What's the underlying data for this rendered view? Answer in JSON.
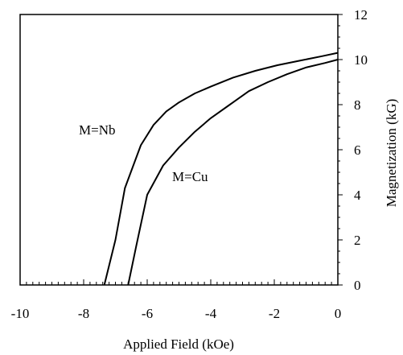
{
  "chart_data": {
    "type": "line",
    "title": "",
    "xlabel": "Applied Field (kOe)",
    "ylabel": "Magnetization (kG)",
    "xlim": [
      -10,
      0
    ],
    "ylim": [
      0,
      12
    ],
    "x_ticks": [
      -10,
      -8,
      -6,
      -4,
      -2,
      0
    ],
    "y_ticks": [
      0,
      2,
      4,
      6,
      8,
      10,
      12
    ],
    "y_axis_side": "right",
    "grid": false,
    "legend": "none",
    "series": [
      {
        "name": "M=Nb",
        "x": [
          -7.35,
          -7.0,
          -6.7,
          -6.2,
          -5.8,
          -5.4,
          -5.0,
          -4.5,
          -4.0,
          -3.3,
          -2.6,
          -1.9,
          -1.2,
          -0.5,
          0.0
        ],
        "y": [
          0.0,
          2.0,
          4.3,
          6.2,
          7.1,
          7.7,
          8.1,
          8.5,
          8.8,
          9.2,
          9.5,
          9.75,
          9.95,
          10.15,
          10.3
        ]
      },
      {
        "name": "M=Cu",
        "x": [
          -6.6,
          -6.35,
          -6.0,
          -5.5,
          -5.0,
          -4.5,
          -4.0,
          -3.4,
          -2.8,
          -2.2,
          -1.6,
          -1.0,
          -0.4,
          0.0
        ],
        "y": [
          0.0,
          1.7,
          4.0,
          5.3,
          6.1,
          6.8,
          7.4,
          8.0,
          8.6,
          9.0,
          9.35,
          9.65,
          9.85,
          10.0
        ]
      }
    ]
  }
}
